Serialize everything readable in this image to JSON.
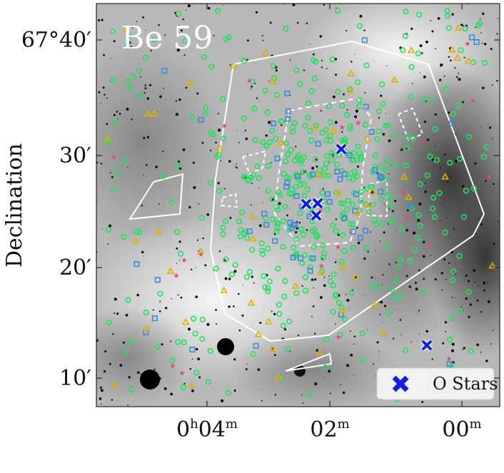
{
  "figure": {
    "panel_title": "Be 59",
    "y_axis_label": "Declination",
    "x_ticks": [
      {
        "base": "0",
        "sup1": "h",
        "mid": "04",
        "sup2": "m"
      },
      {
        "base": "02",
        "sup1": "",
        "mid": "",
        "sup2": "m"
      },
      {
        "base": "00",
        "sup1": "",
        "mid": "",
        "sup2": "m"
      }
    ],
    "y_ticks": [
      "67°40′",
      "30′",
      "20′",
      "10′"
    ],
    "legend": {
      "label": "O Stars"
    },
    "colors": {
      "o_star_marker": "#1020e0",
      "circle_marker": "#22e060",
      "square_marker": "#3a8ad8",
      "triangle_marker": "#e0b000",
      "star_marker": "#e8408a",
      "region_outline": "#ffffff"
    },
    "marker_types": [
      "x-marker",
      "circle",
      "square",
      "triangle",
      "star"
    ]
  }
}
